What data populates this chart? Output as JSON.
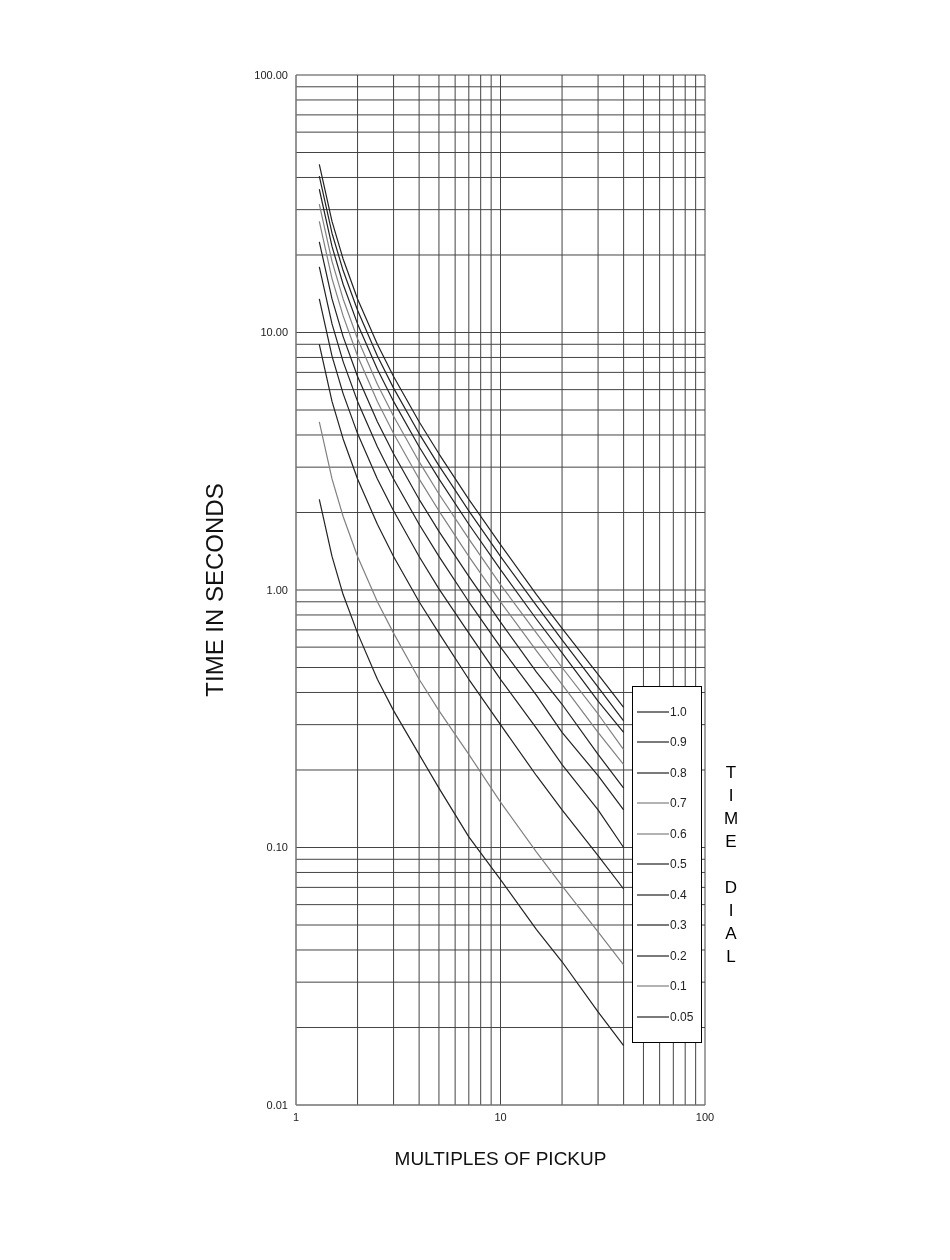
{
  "chart_data": {
    "type": "line",
    "xlabel": "MULTIPLES OF PICKUP",
    "ylabel": "TIME IN SECONDS",
    "legend_title": "TIME DIAL",
    "log": "xy",
    "grid": true,
    "legend": "bottom right",
    "marker": "none",
    "line_style": "solid",
    "xlim": [
      1,
      100
    ],
    "ylim": [
      0.01,
      100
    ],
    "xticks": [
      1,
      {
        "value": 2,
        "label": null
      },
      {
        "value": 3,
        "label": null
      },
      {
        "value": 4,
        "label": null
      },
      {
        "value": 5,
        "label": null
      },
      {
        "value": 6,
        "label": null
      },
      {
        "value": 7,
        "label": null
      },
      {
        "value": 8,
        "label": null
      },
      {
        "value": 9,
        "label": null
      },
      10,
      {
        "value": 20,
        "label": null
      },
      {
        "value": 30,
        "label": null
      },
      {
        "value": 40,
        "label": null
      },
      {
        "value": 50,
        "label": null
      },
      {
        "value": 60,
        "label": null
      },
      {
        "value": 70,
        "label": null
      },
      {
        "value": 80,
        "label": null
      },
      {
        "value": 90,
        "label": null
      },
      100
    ],
    "yticks": [
      {
        "value": 0.01,
        "label": "0.01"
      },
      {
        "value": 0.02,
        "label": null
      },
      {
        "value": 0.03,
        "label": null
      },
      {
        "value": 0.04,
        "label": null
      },
      {
        "value": 0.05,
        "label": null
      },
      {
        "value": 0.06,
        "label": null
      },
      {
        "value": 0.07,
        "label": null
      },
      {
        "value": 0.08,
        "label": null
      },
      {
        "value": 0.09,
        "label": null
      },
      {
        "value": 0.1,
        "label": "0.10"
      },
      {
        "value": 0.2,
        "label": null
      },
      {
        "value": 0.3,
        "label": null
      },
      {
        "value": 0.4,
        "label": null
      },
      {
        "value": 0.5,
        "label": null
      },
      {
        "value": 0.6,
        "label": null
      },
      {
        "value": 0.7,
        "label": null
      },
      {
        "value": 0.8,
        "label": null
      },
      {
        "value": 0.9,
        "label": null
      },
      {
        "value": 1,
        "label": "1.00"
      },
      {
        "value": 2,
        "label": null
      },
      {
        "value": 3,
        "label": null
      },
      {
        "value": 4,
        "label": null
      },
      {
        "value": 5,
        "label": null
      },
      {
        "value": 6,
        "label": null
      },
      {
        "value": 7,
        "label": null
      },
      {
        "value": 8,
        "label": null
      },
      {
        "value": 9,
        "label": null
      },
      {
        "value": 10,
        "label": "10.00"
      },
      {
        "value": 20,
        "label": null
      },
      {
        "value": 30,
        "label": null
      },
      {
        "value": 40,
        "label": null
      },
      {
        "value": 50,
        "label": null
      },
      {
        "value": 60,
        "label": null
      },
      {
        "value": 70,
        "label": null
      },
      {
        "value": 80,
        "label": null
      },
      {
        "value": 90,
        "label": null
      },
      {
        "value": 100,
        "label": "100.00"
      }
    ],
    "x": [
      1.3,
      1.5,
      1.7,
      2,
      2.5,
      3,
      4,
      5,
      7,
      10,
      15,
      20,
      30,
      40
    ],
    "series": [
      {
        "name": "1.0",
        "color": "#222222",
        "values": [
          45,
          27,
          19.3,
          13.5,
          9,
          6.75,
          4.5,
          3.38,
          2.25,
          1.5,
          0.96,
          0.71,
          0.47,
          0.35
        ]
      },
      {
        "name": "0.9",
        "color": "#222222",
        "values": [
          40.5,
          24.3,
          17.4,
          12.2,
          8.1,
          6.08,
          4.05,
          3.04,
          2.03,
          1.35,
          0.87,
          0.64,
          0.42,
          0.31
        ]
      },
      {
        "name": "0.8",
        "color": "#222222",
        "values": [
          36,
          21.6,
          15.4,
          10.8,
          7.2,
          5.4,
          3.6,
          2.7,
          1.8,
          1.2,
          0.77,
          0.57,
          0.37,
          0.28
        ]
      },
      {
        "name": "0.7",
        "color": "#808080",
        "values": [
          31.5,
          18.9,
          13.5,
          9.45,
          6.3,
          4.73,
          3.15,
          2.36,
          1.58,
          1.05,
          0.68,
          0.5,
          0.33,
          0.24
        ]
      },
      {
        "name": "0.6",
        "color": "#808080",
        "values": [
          27,
          16.2,
          11.6,
          8.1,
          5.4,
          4.05,
          2.7,
          2.03,
          1.35,
          0.9,
          0.58,
          0.43,
          0.28,
          0.21
        ]
      },
      {
        "name": "0.5",
        "color": "#222222",
        "values": [
          22.5,
          13.5,
          9.64,
          6.75,
          4.5,
          3.38,
          2.25,
          1.69,
          1.13,
          0.75,
          0.48,
          0.36,
          0.23,
          0.17
        ]
      },
      {
        "name": "0.4",
        "color": "#222222",
        "values": [
          18,
          10.8,
          7.71,
          5.4,
          3.6,
          2.7,
          1.8,
          1.35,
          0.9,
          0.6,
          0.39,
          0.28,
          0.19,
          0.14
        ]
      },
      {
        "name": "0.3",
        "color": "#222222",
        "values": [
          13.5,
          8.1,
          5.79,
          4.05,
          2.7,
          2.03,
          1.35,
          1.01,
          0.68,
          0.45,
          0.29,
          0.21,
          0.14,
          0.1
        ]
      },
      {
        "name": "0.2",
        "color": "#222222",
        "values": [
          9,
          5.4,
          3.86,
          2.7,
          1.8,
          1.35,
          0.9,
          0.68,
          0.45,
          0.3,
          0.19,
          0.14,
          0.093,
          0.069
        ]
      },
      {
        "name": "0.1",
        "color": "#808080",
        "values": [
          4.5,
          2.7,
          1.93,
          1.35,
          0.9,
          0.68,
          0.45,
          0.34,
          0.23,
          0.15,
          0.096,
          0.071,
          0.047,
          0.035
        ]
      },
      {
        "name": "0.05",
        "color": "#222222",
        "values": [
          2.25,
          1.35,
          0.96,
          0.68,
          0.45,
          0.34,
          0.23,
          0.17,
          0.11,
          0.075,
          0.048,
          0.036,
          0.023,
          0.017
        ]
      }
    ]
  }
}
